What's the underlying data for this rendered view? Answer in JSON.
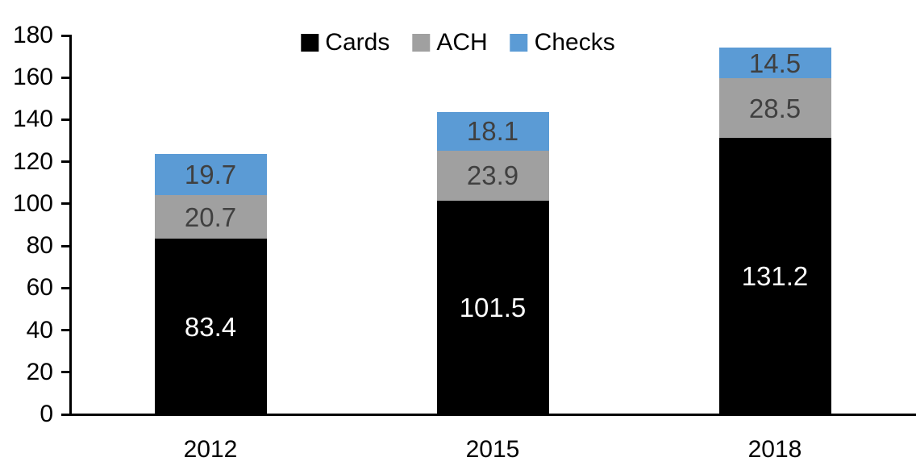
{
  "chart_data": {
    "type": "bar",
    "stacked": true,
    "title": "",
    "xlabel": "",
    "ylabel": "",
    "categories": [
      "2012",
      "2015",
      "2018"
    ],
    "series": [
      {
        "name": "Cards",
        "color": "#000000",
        "label_color": "#ffffff",
        "values": [
          83.4,
          101.5,
          131.2
        ]
      },
      {
        "name": "ACH",
        "color": "#a0a0a0",
        "label_color": "#404040",
        "values": [
          20.7,
          23.9,
          28.5
        ]
      },
      {
        "name": "Checks",
        "color": "#5b9bd5",
        "label_color": "#404040",
        "values": [
          19.7,
          18.1,
          14.5
        ]
      }
    ],
    "ylim": [
      0,
      180
    ],
    "yticks": [
      0,
      20,
      40,
      60,
      80,
      100,
      120,
      140,
      160,
      180
    ],
    "legend_position": "top-center",
    "grid": false,
    "axis_color": "#000000",
    "background_color": "#ffffff"
  }
}
